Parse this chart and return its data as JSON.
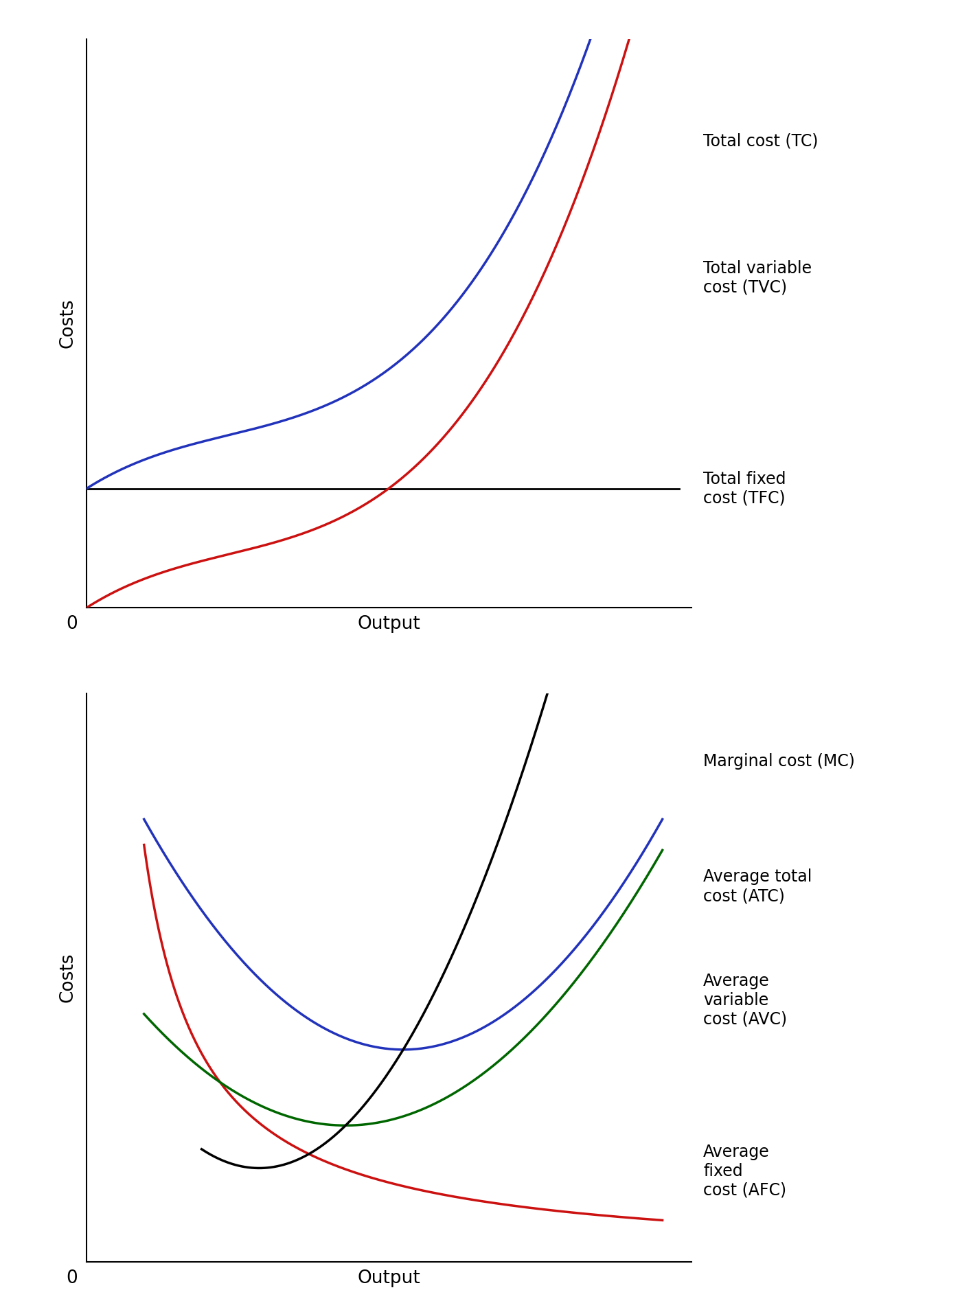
{
  "background_color": "#ffffff",
  "top_chart": {
    "xlabel": "Output",
    "ylabel": "Costs",
    "origin_label": "0",
    "tfc_label": "Total fixed\ncost (TFC)",
    "tvc_label": "Total variable\ncost (TVC)",
    "tc_label": "Total cost (TC)",
    "tc_color": "#2233bb",
    "tvc_color": "#cc1111",
    "tfc_color": "#000000",
    "label_fontsize": 17,
    "axis_label_fontsize": 19
  },
  "bottom_chart": {
    "xlabel": "Output",
    "ylabel": "Costs",
    "origin_label": "0",
    "mc_label": "Marginal cost (MC)",
    "atc_label": "Average total\ncost (ATC)",
    "avc_label": "Average\nvariable\ncost (AVC)",
    "afc_label": "Average\nfixed\ncost (AFC)",
    "mc_color": "#000000",
    "atc_color": "#2233bb",
    "avc_color": "#006600",
    "afc_color": "#cc1111",
    "label_fontsize": 17,
    "axis_label_fontsize": 19
  }
}
